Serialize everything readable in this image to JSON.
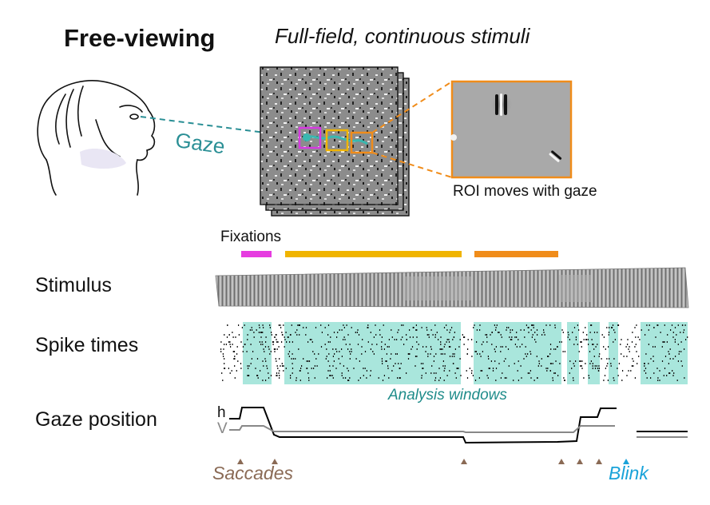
{
  "figure": {
    "title": "Free-viewing",
    "subtitle": "Full-field, continuous stimuli",
    "gaze_label": "Gaze",
    "roi_caption": "ROI moves with gaze",
    "fixations_label": "Fixations",
    "rows": {
      "stimulus": "Stimulus",
      "spike_times": "Spike times",
      "gaze_position": "Gaze position"
    },
    "analysis_windows_label": "Analysis windows",
    "h_label": "h",
    "v_label": "V",
    "saccades_label": "Saccades",
    "blink_label": "Blink"
  },
  "colors": {
    "roi_magenta": "#d63be0",
    "roi_yellow": "#f0b400",
    "roi_orange": "#f08c1a",
    "gaze_teal": "#2a8f95",
    "analysis_fill": "#a9e6dc",
    "saccade_marker": "#8a6a55",
    "blink": "#1aa3d9",
    "trace_h": "#000000",
    "trace_v": "#888888"
  },
  "icons": [
    "monkey-profile-icon",
    "stimulus-frame-stack",
    "roi-zoom-inset",
    "gabor-patch"
  ]
}
